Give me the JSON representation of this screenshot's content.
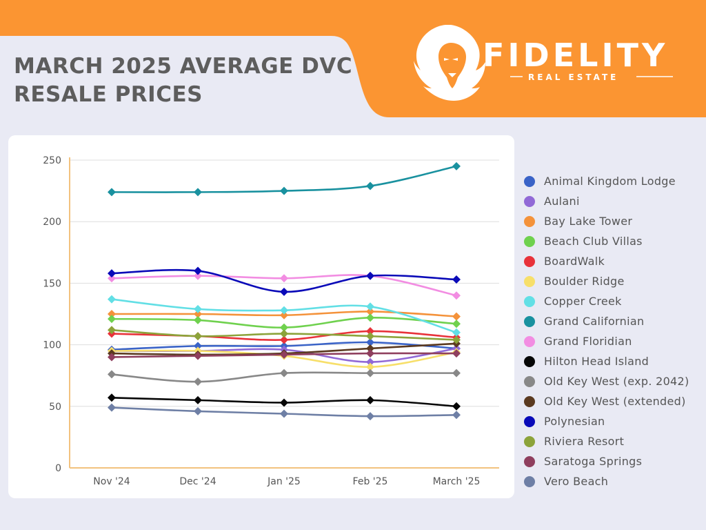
{
  "header": {
    "title_line1": "MARCH 2025 AVERAGE DVC",
    "title_line2": "RESALE PRICES",
    "brand_name": "FIDELITY",
    "brand_sub": "REAL ESTATE",
    "band_color": "#fb9532"
  },
  "chart_data": {
    "type": "line",
    "title": "MARCH 2025 AVERAGE DVC RESALE PRICES",
    "xlabel": "",
    "ylabel": "",
    "categories": [
      "Nov '24",
      "Dec '24",
      "Jan '25",
      "Feb '25",
      "March '25"
    ],
    "ylim": [
      0,
      250
    ],
    "yticks": [
      0,
      50,
      100,
      150,
      200,
      250
    ],
    "legend_position": "right",
    "series": [
      {
        "name": "Animal Kingdom Lodge",
        "color": "#3a63c7",
        "values": [
          96,
          99,
          99,
          102,
          97
        ]
      },
      {
        "name": "Aulani",
        "color": "#9169d6",
        "values": [
          95,
          95,
          96,
          86,
          97
        ]
      },
      {
        "name": "Bay Lake Tower",
        "color": "#f4923a",
        "values": [
          125,
          125,
          124,
          127,
          123
        ]
      },
      {
        "name": "Beach Club Villas",
        "color": "#6fd14e",
        "values": [
          121,
          120,
          114,
          122,
          117
        ]
      },
      {
        "name": "BoardWalk",
        "color": "#e8323a",
        "values": [
          109,
          107,
          104,
          111,
          106
        ]
      },
      {
        "name": "Boulder Ridge",
        "color": "#f7df6a",
        "values": [
          95,
          95,
          91,
          82,
          94
        ]
      },
      {
        "name": "Copper Creek",
        "color": "#62dfe5",
        "values": [
          137,
          129,
          128,
          131,
          110
        ]
      },
      {
        "name": "Grand Californian",
        "color": "#19919f",
        "values": [
          224,
          224,
          225,
          229,
          245
        ]
      },
      {
        "name": "Grand Floridian",
        "color": "#f28de2",
        "values": [
          154,
          156,
          154,
          156,
          140
        ]
      },
      {
        "name": "Hilton Head Island",
        "color": "#060606",
        "values": [
          57,
          55,
          53,
          55,
          50
        ]
      },
      {
        "name": "Old Key West (exp. 2042)",
        "color": "#888888",
        "values": [
          76,
          70,
          77,
          77,
          77
        ]
      },
      {
        "name": "Old Key West (extended)",
        "color": "#5b3a20",
        "values": [
          93,
          92,
          93,
          97,
          101
        ]
      },
      {
        "name": "Polynesian",
        "color": "#0a0ab8",
        "values": [
          158,
          160,
          143,
          156,
          153
        ]
      },
      {
        "name": "Riviera Resort",
        "color": "#8ca33a",
        "values": [
          112,
          107,
          109,
          107,
          104
        ]
      },
      {
        "name": "Saratoga Springs",
        "color": "#8f3f5e",
        "values": [
          90,
          91,
          92,
          93,
          93
        ]
      },
      {
        "name": "Vero Beach",
        "color": "#6e7fa5",
        "values": [
          49,
          46,
          44,
          42,
          43
        ]
      }
    ]
  }
}
